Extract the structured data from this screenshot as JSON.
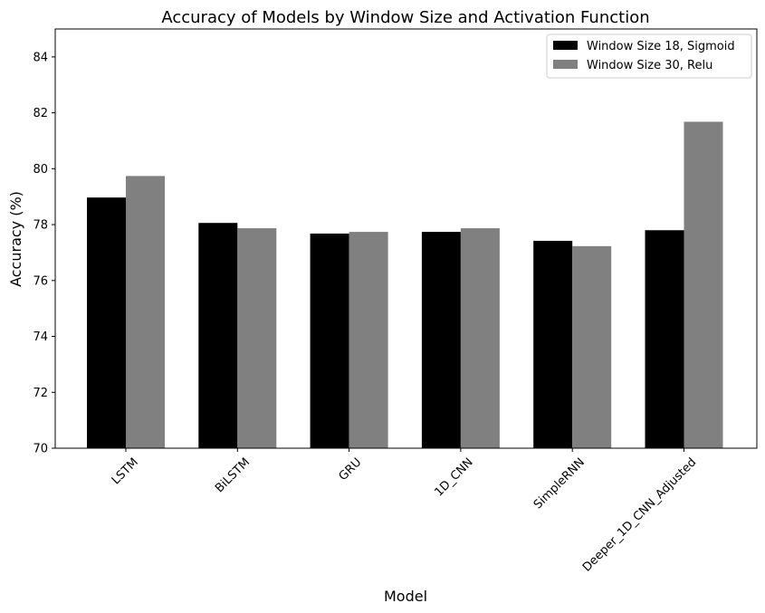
{
  "chart_data": {
    "type": "bar",
    "title": "Accuracy of Models by Window Size and Activation Function",
    "xlabel": "Model",
    "ylabel": "Accuracy (%)",
    "categories": [
      "LSTM",
      "BiLSTM",
      "GRU",
      "1D_CNN",
      "SimpleRNN",
      "Deeper_1D_CNN_Adjusted"
    ],
    "series": [
      {
        "name": "Window Size 18, Sigmoid",
        "color": "#000000",
        "values": [
          78.97,
          78.06,
          77.68,
          77.74,
          77.42,
          77.8
        ]
      },
      {
        "name": "Window Size 30, Relu",
        "color": "#808080",
        "values": [
          79.74,
          77.87,
          77.74,
          77.87,
          77.23,
          81.68
        ]
      }
    ],
    "ylim": [
      70,
      85
    ],
    "yticks": [
      70,
      72,
      74,
      76,
      78,
      80,
      82,
      84
    ],
    "grid": false,
    "legend_position": "top-right"
  }
}
